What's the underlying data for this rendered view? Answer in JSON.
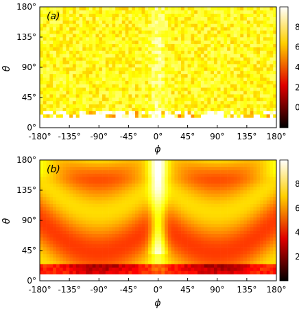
{
  "chart_data": [
    {
      "type": "heatmap",
      "panel_label": "(a)",
      "xlabel": "ϕ",
      "ylabel": "θ",
      "xlim": [
        -180,
        180
      ],
      "ylim": [
        0,
        180
      ],
      "x_ticks": [
        "-180°",
        "-135°",
        "-90°",
        "-45°",
        "0°",
        "45°",
        "90°",
        "135°",
        "180°"
      ],
      "y_ticks": [
        "0°",
        "45°",
        "90°",
        "135°",
        "180°"
      ],
      "colorbar": {
        "min": -2,
        "max": 10,
        "ticks": [
          "0",
          "2",
          "4",
          "6",
          "8"
        ],
        "colormap": "hot"
      },
      "texture": "noisy",
      "description_values": {
        "typical_level": 7.5,
        "empty_below_theta": 15
      }
    },
    {
      "type": "heatmap",
      "panel_label": "(b)",
      "xlabel": "ϕ",
      "ylabel": "θ",
      "xlim": [
        -180,
        180
      ],
      "ylim": [
        0,
        180
      ],
      "x_ticks": [
        "-180°",
        "-135°",
        "-90°",
        "-45°",
        "0°",
        "45°",
        "90°",
        "135°",
        "180°"
      ],
      "y_ticks": [
        "0°",
        "45°",
        "90°",
        "135°",
        "180°"
      ],
      "colorbar": {
        "min": 0,
        "max": 10,
        "ticks": [
          "2",
          "4",
          "6",
          "8"
        ],
        "colormap": "hot"
      },
      "texture": "smooth-bands",
      "description_values": {
        "typical_level": 6,
        "empty_below_theta": 8
      }
    }
  ]
}
